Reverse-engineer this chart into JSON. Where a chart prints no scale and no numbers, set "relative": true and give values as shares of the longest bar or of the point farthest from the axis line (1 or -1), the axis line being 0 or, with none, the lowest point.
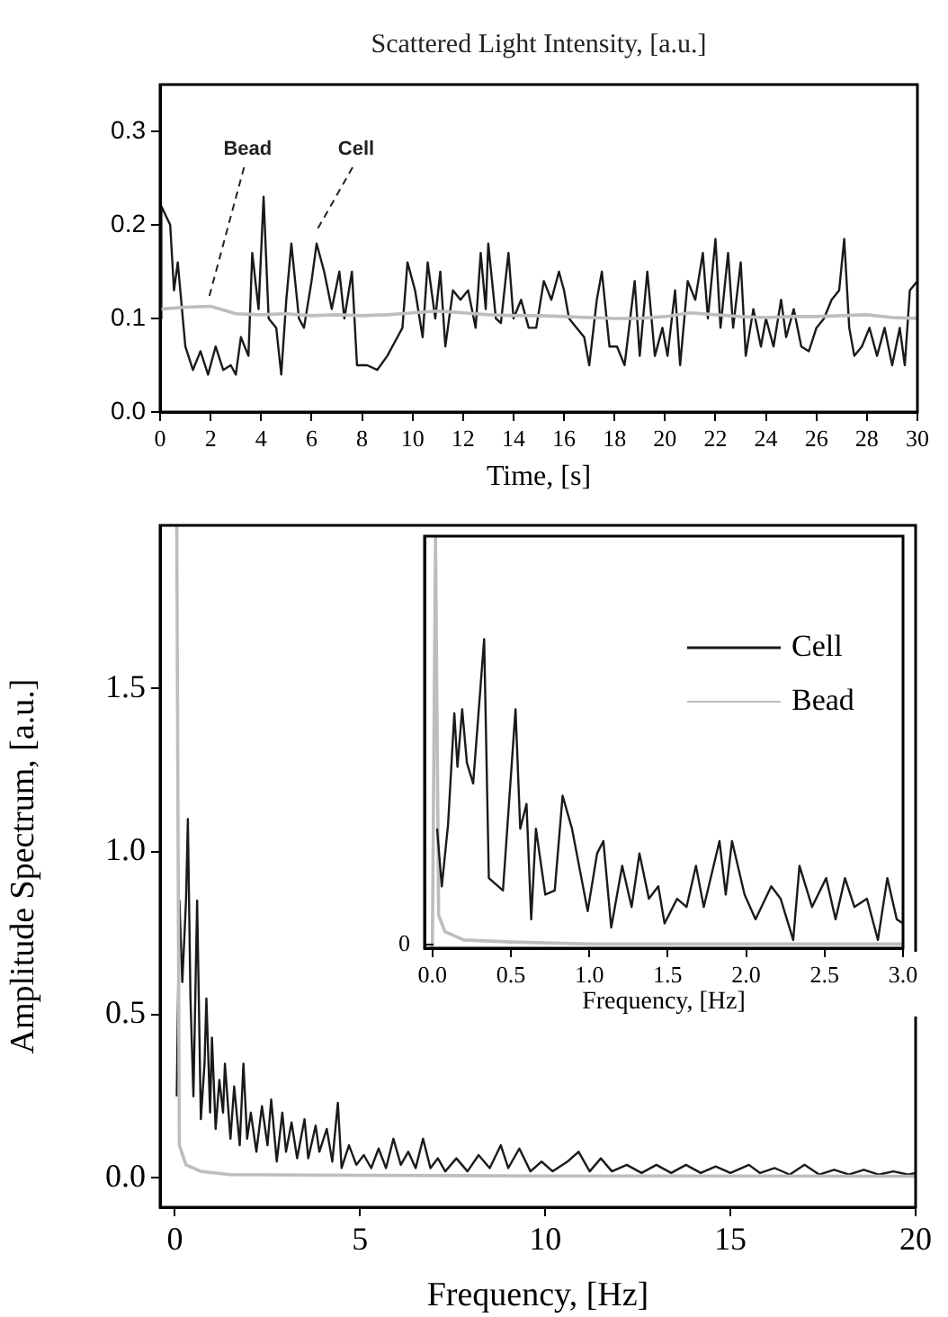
{
  "chart_data": [
    {
      "type": "line",
      "title": "Scattered Light Intensity, [a.u.]",
      "xlabel": "Time, [s]",
      "xlim": [
        0,
        30
      ],
      "ylim": [
        0,
        0.35
      ],
      "xticks": [
        0,
        2,
        4,
        6,
        8,
        10,
        12,
        14,
        16,
        18,
        20,
        22,
        24,
        26,
        28,
        30
      ],
      "yticks": [
        {
          "value": 0,
          "label": "0.0"
        },
        {
          "value": 0.1,
          "label": "0.1"
        },
        {
          "value": 0.2,
          "label": "0.2"
        },
        {
          "value": 0.3,
          "label": "0.3"
        }
      ],
      "series": [
        {
          "color": "#bdbdbd",
          "x": [
            0,
            1,
            2,
            3,
            4,
            5,
            6,
            7,
            8,
            9,
            10,
            11,
            12,
            13,
            14,
            15,
            16,
            17,
            18,
            19,
            20,
            21,
            22,
            23,
            24,
            25,
            26,
            27,
            28,
            29,
            30
          ],
          "values": [
            0.11,
            0.112,
            0.113,
            0.105,
            0.104,
            0.105,
            0.103,
            0.104,
            0.103,
            0.104,
            0.106,
            0.108,
            0.106,
            0.104,
            0.103,
            0.103,
            0.102,
            0.101,
            0.1,
            0.1,
            0.102,
            0.106,
            0.104,
            0.102,
            0.101,
            0.102,
            0.102,
            0.103,
            0.104,
            0.101,
            0.1
          ]
        },
        {
          "color": "#1a1a1a",
          "x": [
            0,
            0.05,
            0.4,
            0.55,
            0.7,
            0.9,
            1.0,
            1.3,
            1.6,
            1.9,
            2.2,
            2.5,
            2.8,
            3.0,
            3.2,
            3.5,
            3.65,
            3.9,
            4.1,
            4.3,
            4.6,
            4.8,
            5.0,
            5.2,
            5.5,
            5.7,
            6.0,
            6.2,
            6.5,
            6.8,
            7.1,
            7.3,
            7.6,
            7.8,
            8.2,
            8.6,
            9.0,
            9.3,
            9.6,
            9.8,
            10.1,
            10.4,
            10.6,
            10.9,
            11.1,
            11.3,
            11.6,
            11.9,
            12.2,
            12.5,
            12.7,
            12.9,
            13.0,
            13.3,
            13.5,
            13.8,
            14.0,
            14.3,
            14.6,
            14.9,
            15.2,
            15.5,
            15.8,
            16.0,
            16.2,
            16.5,
            16.8,
            17.0,
            17.3,
            17.5,
            17.8,
            18.1,
            18.4,
            18.8,
            19.0,
            19.3,
            19.6,
            19.9,
            20.1,
            20.4,
            20.6,
            20.9,
            21.2,
            21.5,
            21.7,
            22.0,
            22.2,
            22.5,
            22.7,
            23.0,
            23.2,
            23.5,
            23.8,
            24.0,
            24.3,
            24.6,
            24.8,
            25.1,
            25.4,
            25.7,
            26.0,
            26.3,
            26.6,
            26.9,
            27.1,
            27.3,
            27.5,
            27.8,
            28.1,
            28.4,
            28.7,
            29.0,
            29.3,
            29.5,
            29.7,
            30.0
          ],
          "values": [
            0.1,
            0.22,
            0.2,
            0.13,
            0.16,
            0.1,
            0.07,
            0.045,
            0.065,
            0.04,
            0.07,
            0.045,
            0.05,
            0.04,
            0.08,
            0.06,
            0.17,
            0.11,
            0.23,
            0.1,
            0.09,
            0.04,
            0.12,
            0.18,
            0.1,
            0.09,
            0.14,
            0.18,
            0.15,
            0.11,
            0.15,
            0.1,
            0.15,
            0.05,
            0.05,
            0.045,
            0.06,
            0.075,
            0.09,
            0.16,
            0.13,
            0.08,
            0.16,
            0.1,
            0.15,
            0.07,
            0.13,
            0.12,
            0.13,
            0.09,
            0.17,
            0.11,
            0.18,
            0.1,
            0.095,
            0.17,
            0.1,
            0.12,
            0.09,
            0.09,
            0.14,
            0.12,
            0.15,
            0.13,
            0.1,
            0.09,
            0.08,
            0.05,
            0.12,
            0.15,
            0.07,
            0.07,
            0.05,
            0.14,
            0.06,
            0.15,
            0.06,
            0.09,
            0.06,
            0.13,
            0.05,
            0.14,
            0.12,
            0.17,
            0.1,
            0.185,
            0.09,
            0.17,
            0.09,
            0.16,
            0.06,
            0.11,
            0.07,
            0.1,
            0.07,
            0.12,
            0.08,
            0.11,
            0.07,
            0.065,
            0.09,
            0.1,
            0.12,
            0.13,
            0.185,
            0.09,
            0.06,
            0.07,
            0.09,
            0.06,
            0.09,
            0.05,
            0.09,
            0.05,
            0.13,
            0.14
          ]
        }
      ],
      "annotations": [
        {
          "text": "Bead",
          "x": 1.9,
          "y": 0.115
        },
        {
          "text": "Cell",
          "x": 6.2,
          "y": 0.19
        }
      ]
    },
    {
      "type": "line",
      "xlabel": "Frequency, [Hz]",
      "ylabel": "Amplitude Spectrum, [a.u.]",
      "xlim": [
        -0.4,
        20
      ],
      "ylim": [
        -0.09,
        2.0
      ],
      "xticks": [
        0,
        5,
        10,
        15,
        20
      ],
      "yticks": [
        {
          "value": 0,
          "label": "0.0"
        },
        {
          "value": 0.5,
          "label": "0.5"
        },
        {
          "value": 1,
          "label": "1.0"
        },
        {
          "value": 1.5,
          "label": "1.5"
        }
      ],
      "series": [
        {
          "color": "#bdbdbd",
          "x": [
            0.05,
            0.12,
            0.3,
            0.7,
            1.5,
            5,
            10,
            20
          ],
          "values": [
            2.0,
            0.1,
            0.04,
            0.02,
            0.01,
            0.008,
            0.006,
            0.005
          ]
        },
        {
          "color": "#1a1a1a",
          "x": [
            0.05,
            0.12,
            0.2,
            0.3,
            0.35,
            0.42,
            0.5,
            0.6,
            0.7,
            0.8,
            0.85,
            0.95,
            1.0,
            1.1,
            1.2,
            1.3,
            1.35,
            1.5,
            1.6,
            1.75,
            1.85,
            1.95,
            2.05,
            2.2,
            2.35,
            2.5,
            2.6,
            2.75,
            2.9,
            3.0,
            3.15,
            3.3,
            3.5,
            3.6,
            3.8,
            3.9,
            4.1,
            4.25,
            4.4,
            4.5,
            4.7,
            4.9,
            5.1,
            5.3,
            5.5,
            5.7,
            5.9,
            6.1,
            6.3,
            6.5,
            6.7,
            6.9,
            7.1,
            7.3,
            7.6,
            7.9,
            8.2,
            8.5,
            8.8,
            9.0,
            9.3,
            9.6,
            9.9,
            10.2,
            10.6,
            10.9,
            11.2,
            11.5,
            11.8,
            12.2,
            12.6,
            13.0,
            13.4,
            13.8,
            14.2,
            14.6,
            15.0,
            15.5,
            15.8,
            16.2,
            16.6,
            17.0,
            17.4,
            17.8,
            18.2,
            18.6,
            19.0,
            19.4,
            19.8,
            20
          ],
          "values": [
            0.25,
            0.85,
            0.6,
            0.85,
            1.1,
            0.55,
            0.25,
            0.85,
            0.18,
            0.35,
            0.55,
            0.2,
            0.43,
            0.15,
            0.3,
            0.2,
            0.35,
            0.12,
            0.28,
            0.1,
            0.35,
            0.12,
            0.2,
            0.08,
            0.22,
            0.1,
            0.24,
            0.05,
            0.2,
            0.08,
            0.17,
            0.06,
            0.18,
            0.06,
            0.16,
            0.08,
            0.15,
            0.05,
            0.23,
            0.03,
            0.1,
            0.04,
            0.07,
            0.03,
            0.09,
            0.03,
            0.12,
            0.04,
            0.08,
            0.03,
            0.12,
            0.03,
            0.06,
            0.02,
            0.06,
            0.02,
            0.07,
            0.03,
            0.1,
            0.03,
            0.09,
            0.02,
            0.05,
            0.02,
            0.05,
            0.08,
            0.02,
            0.06,
            0.02,
            0.04,
            0.015,
            0.04,
            0.015,
            0.04,
            0.015,
            0.035,
            0.015,
            0.04,
            0.015,
            0.03,
            0.01,
            0.04,
            0.01,
            0.025,
            0.01,
            0.025,
            0.01,
            0.02,
            0.01,
            0.015
          ]
        }
      ]
    },
    {
      "type": "line",
      "relative": true,
      "xlabel": "Frequency, [Hz]",
      "xlim": [
        -0.05,
        3.0
      ],
      "xticks": [
        {
          "value": 0,
          "label": "0.0"
        },
        {
          "value": 0.5,
          "label": "0.5"
        },
        {
          "value": 1,
          "label": "1.0"
        },
        {
          "value": 1.5,
          "label": "1.5"
        },
        {
          "value": 2,
          "label": "2.0"
        },
        {
          "value": 2.5,
          "label": "2.5"
        },
        {
          "value": 3,
          "label": "3.0"
        }
      ],
      "legend": "top right",
      "series": [
        {
          "name": "Cell",
          "color": "#1a1a1a",
          "x": [
            0.03,
            0.06,
            0.1,
            0.14,
            0.16,
            0.19,
            0.22,
            0.26,
            0.33,
            0.36,
            0.45,
            0.53,
            0.56,
            0.6,
            0.63,
            0.66,
            0.72,
            0.78,
            0.83,
            0.89,
            0.95,
            0.99,
            1.05,
            1.09,
            1.14,
            1.21,
            1.27,
            1.32,
            1.38,
            1.44,
            1.48,
            1.56,
            1.62,
            1.68,
            1.73,
            1.83,
            1.87,
            1.91,
            1.99,
            2.06,
            2.16,
            2.22,
            2.3,
            2.34,
            2.42,
            2.51,
            2.57,
            2.63,
            2.69,
            2.77,
            2.84,
            2.9,
            2.96,
            3.0
          ],
          "values": [
            0.29,
            0.15,
            0.3,
            0.57,
            0.44,
            0.58,
            0.45,
            0.4,
            0.75,
            0.17,
            0.14,
            0.58,
            0.29,
            0.35,
            0.07,
            0.29,
            0.13,
            0.14,
            0.37,
            0.29,
            0.17,
            0.09,
            0.23,
            0.26,
            0.05,
            0.2,
            0.1,
            0.23,
            0.12,
            0.15,
            0.06,
            0.12,
            0.1,
            0.2,
            0.1,
            0.26,
            0.13,
            0.26,
            0.13,
            0.07,
            0.15,
            0.12,
            0.02,
            0.2,
            0.1,
            0.17,
            0.07,
            0.17,
            0.1,
            0.12,
            0.02,
            0.17,
            0.07,
            0.06
          ]
        },
        {
          "name": "Bead",
          "color": "#bdbdbd",
          "x": [
            0,
            0.02,
            0.04,
            0.08,
            0.2,
            0.5,
            1,
            2,
            3
          ],
          "values": [
            0,
            1,
            0.08,
            0.04,
            0.02,
            0.015,
            0.01,
            0.01,
            0.01
          ]
        }
      ],
      "annotations": [
        "0"
      ]
    }
  ]
}
